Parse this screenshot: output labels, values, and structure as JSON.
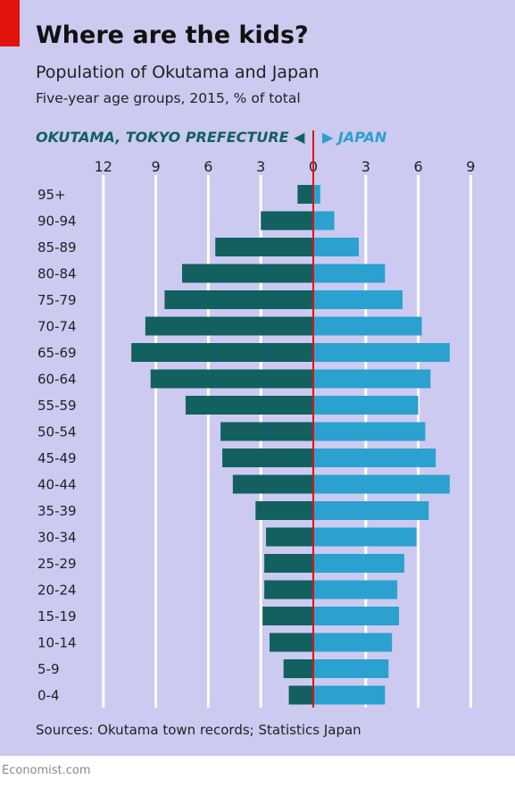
{
  "header": {
    "title": "Where are the kids?",
    "subtitle": "Population of Okutama and Japan",
    "note": "Five-year age groups, 2015, % of total"
  },
  "legend": {
    "left": "OKUTAMA, TOKYO PREFECTURE",
    "right": "JAPAN"
  },
  "footer": {
    "source": "Sources: Okutama town records; Statistics Japan",
    "brand": "Economist.com"
  },
  "colors": {
    "panel": "#cccaf0",
    "accent": "#e3120b",
    "okutama": "#12605f",
    "japan": "#2aa1cf",
    "center_line": "#e3120b",
    "grid": "#ffffff"
  },
  "chart_data": {
    "type": "bar",
    "orientation": "horizontal",
    "layout": "population-pyramid",
    "categories": [
      "95+",
      "90-94",
      "85-89",
      "80-84",
      "75-79",
      "70-74",
      "65-69",
      "60-64",
      "55-59",
      "50-54",
      "45-49",
      "40-44",
      "35-39",
      "30-34",
      "25-29",
      "20-24",
      "15-19",
      "10-14",
      "5-9",
      "0-4"
    ],
    "series": [
      {
        "name": "OKUTAMA, TOKYO PREFECTURE",
        "side": "left",
        "values": [
          0.9,
          3.0,
          5.6,
          7.5,
          8.5,
          9.6,
          10.4,
          9.3,
          7.3,
          5.3,
          5.2,
          4.6,
          3.3,
          2.7,
          2.8,
          2.8,
          2.9,
          2.5,
          1.7,
          1.4
        ]
      },
      {
        "name": "JAPAN",
        "side": "right",
        "values": [
          0.4,
          1.2,
          2.6,
          4.1,
          5.1,
          6.2,
          7.8,
          6.7,
          6.0,
          6.4,
          7.0,
          7.8,
          6.6,
          5.9,
          5.2,
          4.8,
          4.9,
          4.5,
          4.3,
          4.1
        ]
      }
    ],
    "x_ticks_left": [
      "12",
      "9",
      "6",
      "3",
      "0"
    ],
    "x_ticks_right": [
      "3",
      "6",
      "9"
    ],
    "x_tick_values_left": [
      12,
      9,
      6,
      3,
      0
    ],
    "x_tick_values_right": [
      3,
      6,
      9
    ],
    "xlim_left": [
      0,
      12
    ],
    "xlim_right": [
      0,
      9
    ],
    "grid": true,
    "legend_position": "top"
  }
}
